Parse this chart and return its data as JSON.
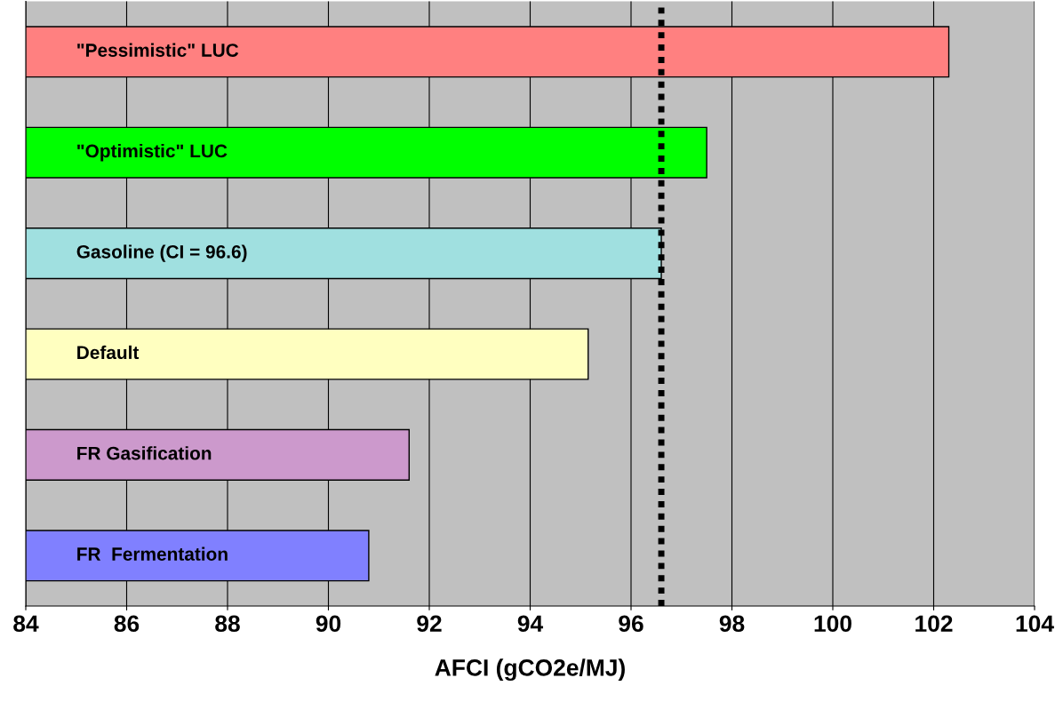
{
  "chart_data": {
    "type": "bar",
    "orientation": "horizontal",
    "xlabel": "AFCI (gCO2e/MJ)",
    "categories": [
      "\"Pessimistic\" LUC",
      "\"Optimistic\" LUC",
      "Gasoline (CI = 96.6)",
      "Default",
      "FR Gasification",
      "FR  Fermentation"
    ],
    "values": [
      102.3,
      97.5,
      96.6,
      95.15,
      91.6,
      90.8
    ],
    "colors": [
      "#ff8080",
      "#00ff00",
      "#a0e0e0",
      "#ffffc0",
      "#cc99cc",
      "#8080ff"
    ],
    "xlim": [
      84,
      104
    ],
    "xticks": [
      84,
      86,
      88,
      90,
      92,
      94,
      96,
      98,
      100,
      102,
      104
    ],
    "grid": "x",
    "ref_lines": [
      {
        "axis": "x",
        "value": 96.6,
        "color": "#000000",
        "line_style": "dotted"
      }
    ]
  }
}
